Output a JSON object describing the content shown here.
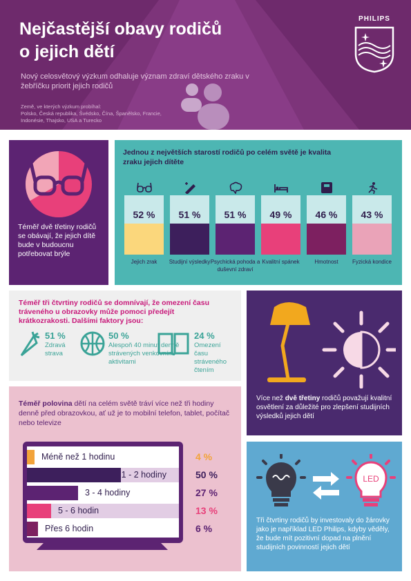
{
  "header": {
    "title_line1": "Nejčastější obavy rodičů",
    "title_line2": "o jejich dětí",
    "subtitle": "Nový celosvětový výzkum odhaluje význam zdraví dětského zraku v žebříčku priorit jejich rodičů",
    "countries_label": "Země, ve kterých výzkum probíhal:",
    "countries": "Polsko, Česká republika, Švédsko, Čína, Španělsko, Francie, Indonésie, Thajsko, USA a Turecko",
    "brand": "PHILIPS"
  },
  "glasses_box": {
    "text": "Téměř dvě třetiny rodičů se obávají, že jejich dítě bude v budoucnu potřebovat brýle",
    "icon": "glasses-icon"
  },
  "concerns": {
    "heading": "Jednou z největších starostí rodičů po celém světě je kvalita zraku jejich dítěte",
    "items": [
      {
        "pct": "52 %",
        "value": 52,
        "label": "Jejich zrak",
        "color": "#fbd77c",
        "icon": "glasses-icon"
      },
      {
        "pct": "51 %",
        "value": 51,
        "label": "Studijní výsledky",
        "color": "#3d1f5c",
        "icon": "pen-icon"
      },
      {
        "pct": "51 %",
        "value": 51,
        "label": "Psychická pohoda a duševní zdraví",
        "color": "#5c2372",
        "icon": "brain-icon"
      },
      {
        "pct": "49 %",
        "value": 49,
        "label": "Kvalitní spánek",
        "color": "#e8407a",
        "icon": "bed-icon"
      },
      {
        "pct": "46 %",
        "value": 46,
        "label": "Hmotnost",
        "color": "#7d2060",
        "icon": "scale-icon"
      },
      {
        "pct": "43 %",
        "value": 43,
        "label": "Fyzická kondice",
        "color": "#eaa3b8",
        "icon": "runner-icon"
      }
    ]
  },
  "screen_time_box": {
    "heading": "Téměř tři čtvrtiny rodičů se domnívají, že omezení času tráveného u obrazovky může pomoci předejít krátkozrakosti. Dalšími faktory jsou:",
    "stats": [
      {
        "pct": "51 %",
        "desc": "Zdravá strava",
        "icon": "carrot-icon"
      },
      {
        "pct": "50 %",
        "desc": "Alespoň 40 minut denně strávených venkovními aktivitami",
        "icon": "ball-icon"
      },
      {
        "pct": "24 %",
        "desc": "Omezení času stráveného čtením",
        "icon": "book-icon"
      }
    ]
  },
  "lighting_box": {
    "text_pre": "Více než ",
    "text_bold": "dvě třetiny",
    "text_post": " rodičů považují kvalitní osvětlení za důležité pro zlepšení studijních výsledků jejich dětí"
  },
  "hours_box": {
    "heading_bold": "Téměř polovina",
    "heading_rest": " dětí na celém světě tráví více než tři hodiny denně před obrazovkou, ať už je to mobilní telefon, tablet, počítač nebo televize",
    "rows": [
      {
        "label": "Méně než 1 hodinu",
        "pct": "4 %",
        "value": 4,
        "color": "#f2a33a",
        "pct_color": "#f2a33a"
      },
      {
        "label": "1 - 2 hodiny",
        "pct": "50 %",
        "value": 50,
        "color": "#3d1f5c",
        "pct_color": "#3d1f5c"
      },
      {
        "label": "3 - 4 hodiny",
        "pct": "27 %",
        "value": 27,
        "color": "#5c2372",
        "pct_color": "#5c2372"
      },
      {
        "label": "5 - 6 hodin",
        "pct": "13 %",
        "value": 13,
        "color": "#e8407a",
        "pct_color": "#e8407a"
      },
      {
        "label": "Přes 6 hodin",
        "pct": "6 %",
        "value": 6,
        "color": "#7d2060",
        "pct_color": "#5c2372"
      }
    ]
  },
  "led_box": {
    "text": "Tři čtvrtiny rodičů by investovaly do žárovky jako je například LED Philips, kdyby věděly, že bude mít pozitivní dopad na plnění studijních povinností jejich dětí",
    "led_label": "LED"
  }
}
